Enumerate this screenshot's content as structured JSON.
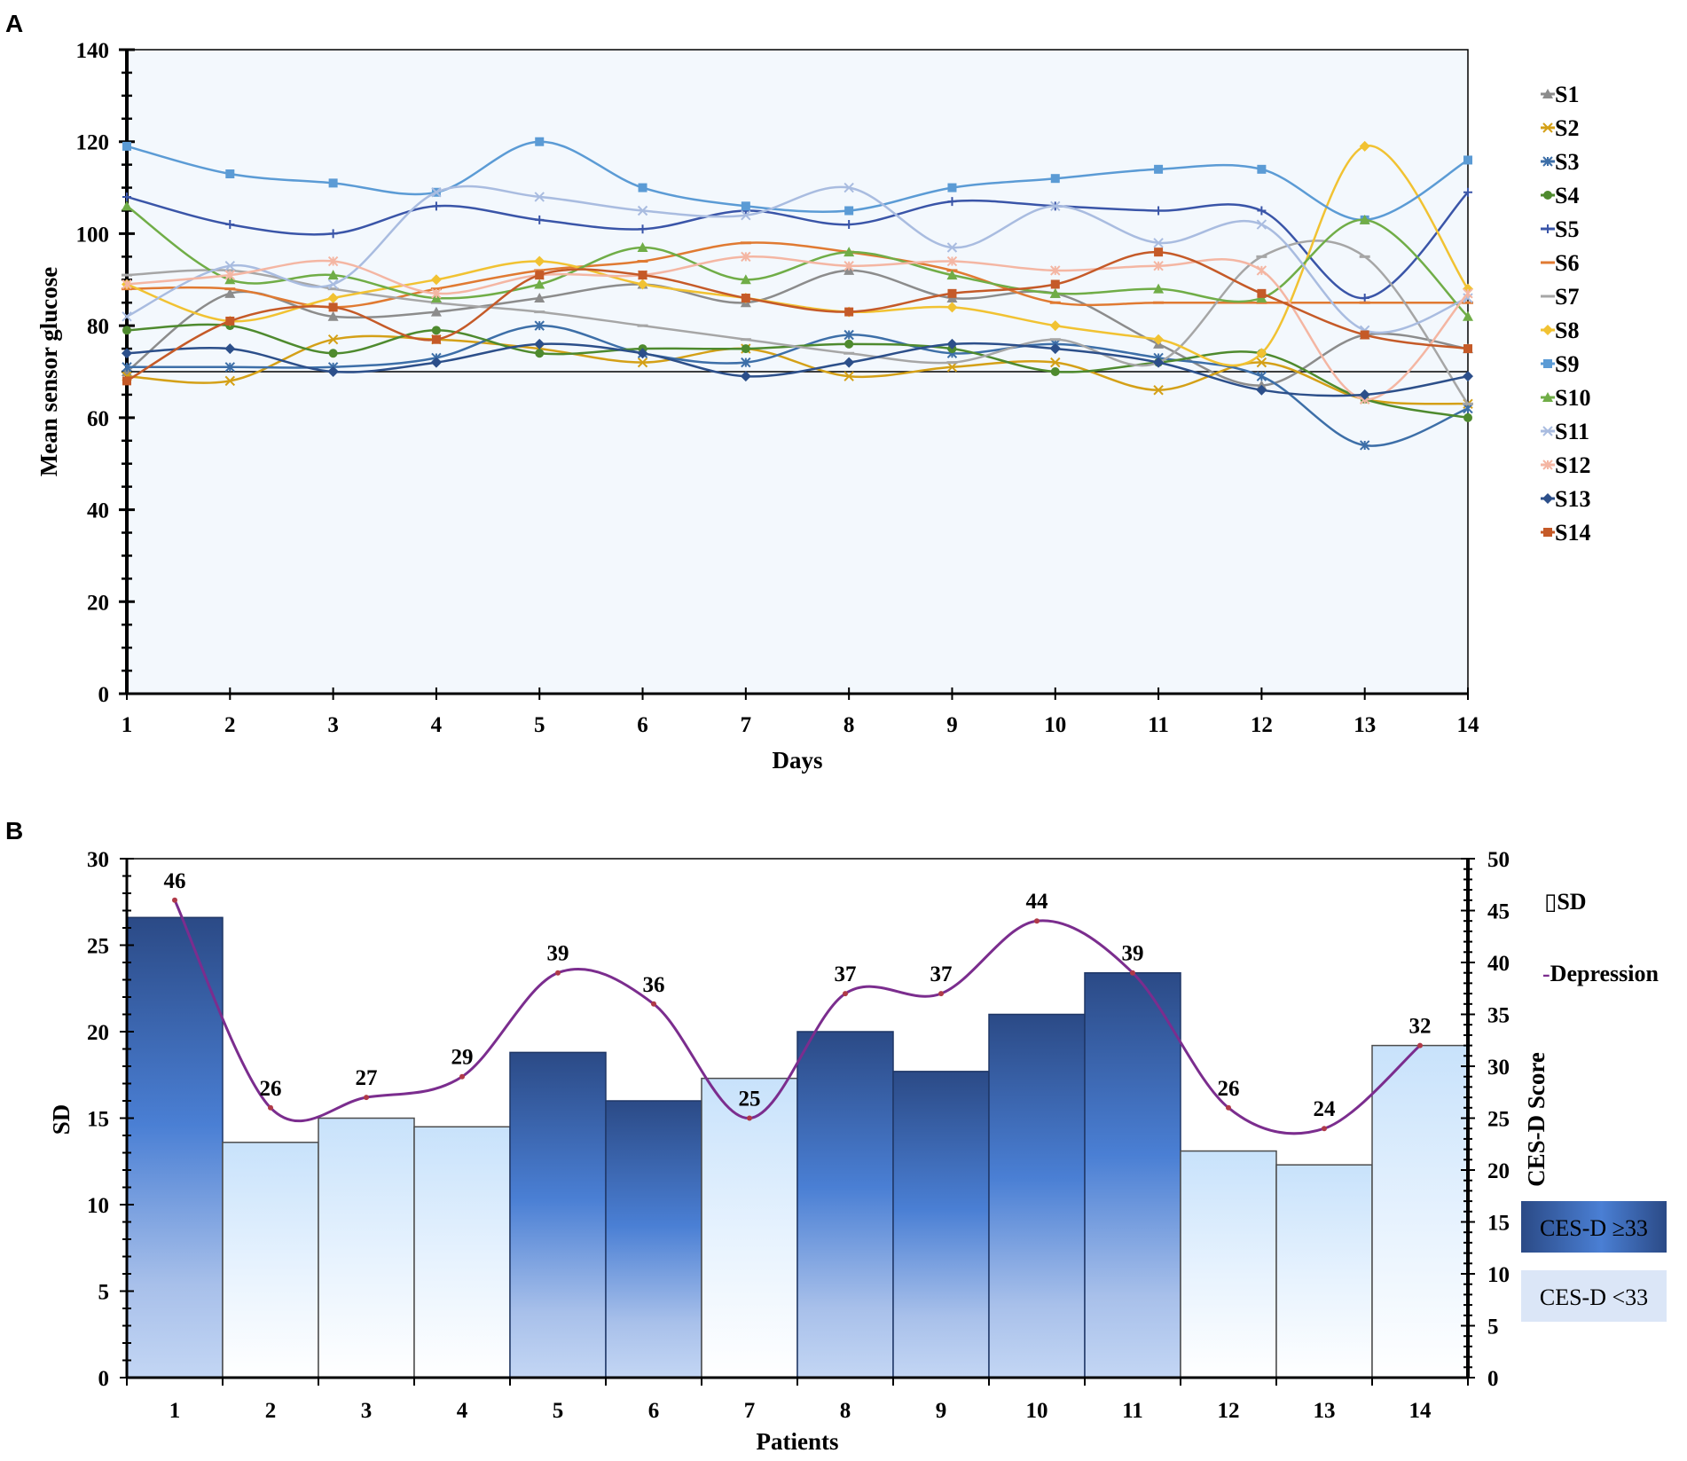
{
  "panelA": {
    "label": "A",
    "chart_data": {
      "type": "line",
      "xlabel": "Days",
      "ylabel": "Mean sensor glucose",
      "x": [
        1,
        2,
        3,
        4,
        5,
        6,
        7,
        8,
        9,
        10,
        11,
        12,
        13,
        14
      ],
      "xticks": [
        "1",
        "2",
        "3",
        "4",
        "5",
        "6",
        "7",
        "8",
        "9",
        "10",
        "11",
        "12",
        "13",
        "14"
      ],
      "ylim": [
        0,
        140
      ],
      "yticks": [
        "0",
        "20",
        "40",
        "60",
        "80",
        "100",
        "120",
        "140"
      ],
      "reference_line": 70,
      "series": [
        {
          "name": "S1",
          "color": "#8c8c8c",
          "marker": "triangle",
          "values": [
            70,
            87,
            82,
            83,
            86,
            89,
            85,
            92,
            86,
            87,
            76,
            67,
            78,
            75
          ]
        },
        {
          "name": "S2",
          "color": "#d4a017",
          "marker": "x",
          "values": [
            69,
            68,
            77,
            77,
            75,
            72,
            75,
            69,
            71,
            72,
            66,
            72,
            64,
            63
          ]
        },
        {
          "name": "S3",
          "color": "#3d6fa8",
          "marker": "star",
          "values": [
            71,
            71,
            71,
            73,
            80,
            74,
            72,
            78,
            74,
            76,
            73,
            69,
            54,
            62
          ]
        },
        {
          "name": "S4",
          "color": "#4e8a2e",
          "marker": "circle",
          "values": [
            79,
            80,
            74,
            79,
            74,
            75,
            75,
            76,
            75,
            70,
            72,
            74,
            64,
            60
          ]
        },
        {
          "name": "S5",
          "color": "#3a55a8",
          "marker": "plus",
          "values": [
            108,
            102,
            100,
            106,
            103,
            101,
            105,
            102,
            107,
            106,
            105,
            105,
            86,
            109
          ]
        },
        {
          "name": "S6",
          "color": "#e07a32",
          "marker": "dash",
          "values": [
            88,
            88,
            84,
            88,
            92,
            94,
            98,
            96,
            92,
            85,
            85,
            85,
            85,
            85
          ]
        },
        {
          "name": "S7",
          "color": "#a6a6a6",
          "marker": "dash",
          "values": [
            91,
            92,
            88,
            85,
            83,
            80,
            77,
            74,
            72,
            77,
            72,
            95,
            95,
            63
          ]
        },
        {
          "name": "S8",
          "color": "#f1c232",
          "marker": "diamond",
          "values": [
            89,
            81,
            86,
            90,
            94,
            89,
            86,
            83,
            84,
            80,
            77,
            74,
            119,
            88
          ]
        },
        {
          "name": "S9",
          "color": "#5b9bd5",
          "marker": "square",
          "values": [
            119,
            113,
            111,
            109,
            120,
            110,
            106,
            105,
            110,
            112,
            114,
            114,
            103,
            116
          ]
        },
        {
          "name": "S10",
          "color": "#70ad47",
          "marker": "triangle",
          "values": [
            106,
            90,
            91,
            86,
            89,
            97,
            90,
            96,
            91,
            87,
            88,
            86,
            103,
            82
          ]
        },
        {
          "name": "S11",
          "color": "#a9bce0",
          "marker": "x",
          "values": [
            82,
            93,
            89,
            109,
            108,
            105,
            104,
            110,
            97,
            106,
            98,
            102,
            79,
            86
          ]
        },
        {
          "name": "S12",
          "color": "#f4b6a3",
          "marker": "star",
          "values": [
            89,
            91,
            94,
            87,
            91,
            91,
            95,
            93,
            94,
            92,
            93,
            92,
            64,
            87
          ]
        },
        {
          "name": "S13",
          "color": "#2c4f8a",
          "marker": "diamond",
          "values": [
            74,
            75,
            70,
            72,
            76,
            74,
            69,
            72,
            76,
            75,
            72,
            66,
            65,
            69
          ]
        },
        {
          "name": "S14",
          "color": "#c55a28",
          "marker": "square",
          "values": [
            68,
            81,
            84,
            77,
            91,
            91,
            86,
            83,
            87,
            89,
            96,
            87,
            78,
            75
          ]
        }
      ]
    }
  },
  "panelB": {
    "label": "B",
    "chart_data": {
      "type": "bar",
      "xlabel": "Patients",
      "ylabel_left": "SD",
      "ylabel_right": "CES-D Score",
      "categories": [
        "1",
        "2",
        "3",
        "4",
        "5",
        "6",
        "7",
        "8",
        "9",
        "10",
        "11",
        "12",
        "13",
        "14"
      ],
      "ylim_left": [
        0,
        30
      ],
      "yticks_left": [
        "0",
        "5",
        "10",
        "15",
        "20",
        "25",
        "30"
      ],
      "ylim_right": [
        0,
        50
      ],
      "yticks_right": [
        "0",
        "5",
        "10",
        "15",
        "20",
        "25",
        "30",
        "35",
        "40",
        "45",
        "50"
      ],
      "series": [
        {
          "name": "SD",
          "type": "bar",
          "values": [
            26.6,
            13.6,
            15.0,
            14.5,
            18.8,
            16.0,
            17.3,
            20.0,
            17.7,
            21.0,
            23.4,
            13.1,
            12.3,
            19.2
          ]
        },
        {
          "name": "Depression",
          "type": "line",
          "axis": "right",
          "color": "#7b2d8e",
          "values": [
            46,
            26,
            27,
            29,
            39,
            36,
            25,
            37,
            37,
            44,
            39,
            26,
            24,
            32
          ],
          "labels": [
            "46",
            "26",
            "27",
            "29",
            "39",
            "36",
            "25",
            "37",
            "37",
            "44",
            "39",
            "26",
            "24",
            "32"
          ]
        }
      ],
      "highlight_threshold": 33,
      "legend": {
        "sd": "SD",
        "sd_glyph": "▯",
        "depression": "Depression",
        "depression_glyph": "-"
      },
      "boxes": {
        "high": "CES-D ≥33",
        "low": "CES-D <33"
      }
    }
  }
}
